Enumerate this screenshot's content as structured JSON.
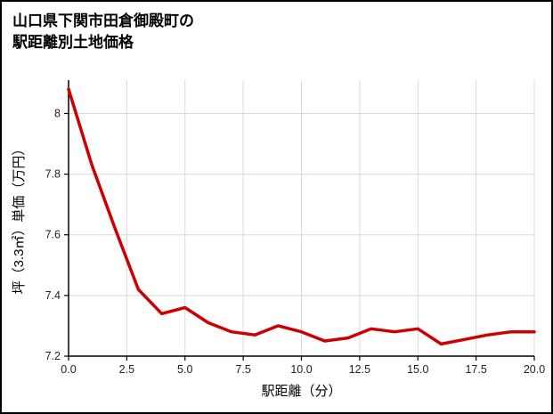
{
  "title": {
    "line1": "山口県下関市田倉御殿町の",
    "line2": "駅距離別土地価格"
  },
  "chart_data": {
    "type": "line",
    "title": "山口県下関市田倉御殿町の駅距離別土地価格",
    "xlabel": "駅距離（分）",
    "ylabel": "坪（3.3㎡）単価（万円）",
    "x": [
      0,
      1,
      2,
      3,
      4,
      5,
      6,
      7,
      8,
      9,
      10,
      11,
      12,
      13,
      14,
      15,
      16,
      17,
      18,
      19,
      20
    ],
    "y": [
      8.08,
      7.83,
      7.62,
      7.42,
      7.34,
      7.36,
      7.31,
      7.28,
      7.27,
      7.3,
      7.28,
      7.25,
      7.26,
      7.29,
      7.28,
      7.29,
      7.24,
      7.255,
      7.27,
      7.28,
      7.28
    ],
    "xlim": [
      0,
      20
    ],
    "ylim": [
      7.2,
      8.11
    ],
    "x_ticks": [
      0,
      2.5,
      5,
      7.5,
      10,
      12.5,
      15,
      17.5,
      20
    ],
    "x_tick_labels": [
      "0.0",
      "2.5",
      "5.0",
      "7.5",
      "10.0",
      "12.5",
      "15.0",
      "17.5",
      "20.0"
    ],
    "y_ticks": [
      7.2,
      7.4,
      7.6,
      7.8,
      8.0
    ],
    "y_tick_labels": [
      "7.2",
      "7.4",
      "7.6",
      "7.8",
      "8"
    ],
    "grid": true,
    "legend": "none",
    "line_color": "#cc0000",
    "background_color": "#ffffff"
  }
}
